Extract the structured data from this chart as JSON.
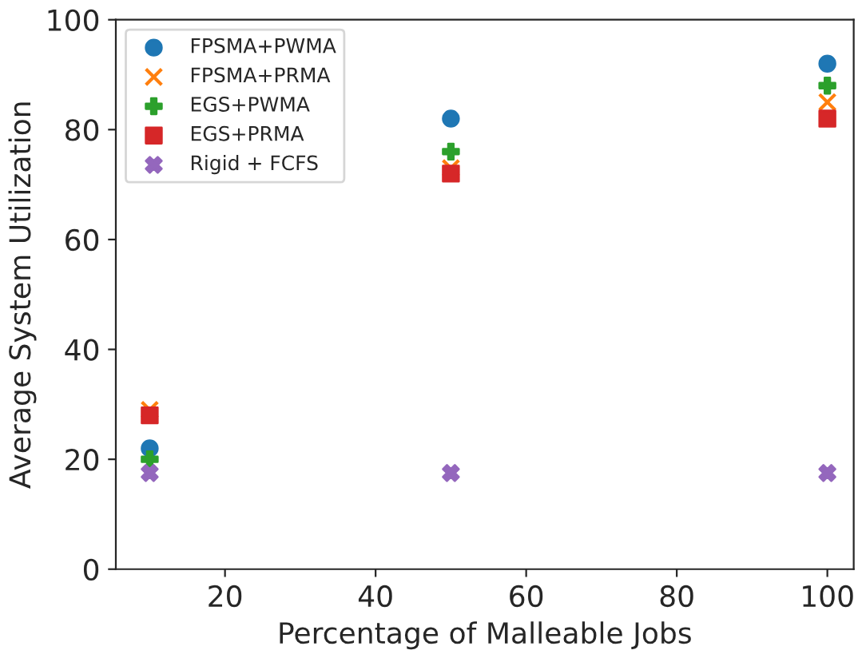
{
  "chart_data": {
    "type": "scatter",
    "xlabel": "Percentage of Malleable Jobs",
    "ylabel": "Average System Utilization",
    "xlim": [
      5.5,
      103.5
    ],
    "ylim": [
      0,
      100
    ],
    "xticks": [
      20,
      40,
      60,
      80,
      100
    ],
    "yticks": [
      0,
      20,
      40,
      60,
      80,
      100
    ],
    "grid": false,
    "legend": "top left",
    "series": [
      {
        "name": "FPSMA+PWMA",
        "color": "#1f77b4",
        "marker": "circle",
        "x": [
          10,
          50,
          100
        ],
        "values": [
          22,
          82,
          92
        ]
      },
      {
        "name": "FPSMA+PRMA",
        "color": "#ff7f0e",
        "marker": "cross",
        "x": [
          10,
          50,
          100
        ],
        "values": [
          29,
          73,
          85
        ]
      },
      {
        "name": "EGS+PWMA",
        "color": "#2ca02c",
        "marker": "plus",
        "x": [
          10,
          50,
          100
        ],
        "values": [
          20,
          76,
          88
        ]
      },
      {
        "name": "EGS+PRMA",
        "color": "#d62728",
        "marker": "square",
        "x": [
          10,
          50,
          100
        ],
        "values": [
          28,
          72,
          82
        ]
      },
      {
        "name": "Rigid + FCFS",
        "color": "#9467bd",
        "marker": "x",
        "x": [
          10,
          50,
          100
        ],
        "values": [
          17.5,
          17.5,
          17.5
        ]
      }
    ]
  }
}
